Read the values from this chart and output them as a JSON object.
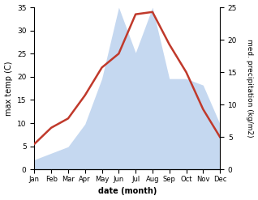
{
  "months": [
    "Jan",
    "Feb",
    "Mar",
    "Apr",
    "May",
    "Jun",
    "Jul",
    "Aug",
    "Sep",
    "Oct",
    "Nov",
    "Dec"
  ],
  "month_positions": [
    0,
    1,
    2,
    3,
    4,
    5,
    6,
    7,
    8,
    9,
    10,
    11
  ],
  "temp": [
    5.5,
    9.0,
    11.0,
    16.0,
    22.0,
    25.0,
    33.5,
    34.0,
    27.0,
    21.0,
    13.0,
    7.0
  ],
  "precip": [
    1.5,
    2.5,
    3.5,
    7.0,
    14.0,
    25.0,
    18.0,
    25.0,
    14.0,
    14.0,
    13.0,
    7.0
  ],
  "temp_color": "#c0392b",
  "precip_fill_color": "#c5d8f0",
  "ylim_left": [
    0,
    35
  ],
  "ylim_right": [
    0,
    25
  ],
  "yticks_left": [
    0,
    5,
    10,
    15,
    20,
    25,
    30,
    35
  ],
  "yticks_right": [
    0,
    5,
    10,
    15,
    20,
    25
  ],
  "ylabel_left": "max temp (C)",
  "ylabel_right": "med. precipitation (kg/m2)",
  "xlabel": "date (month)",
  "background_color": "#ffffff",
  "fig_width": 3.18,
  "fig_height": 2.47,
  "dpi": 100
}
